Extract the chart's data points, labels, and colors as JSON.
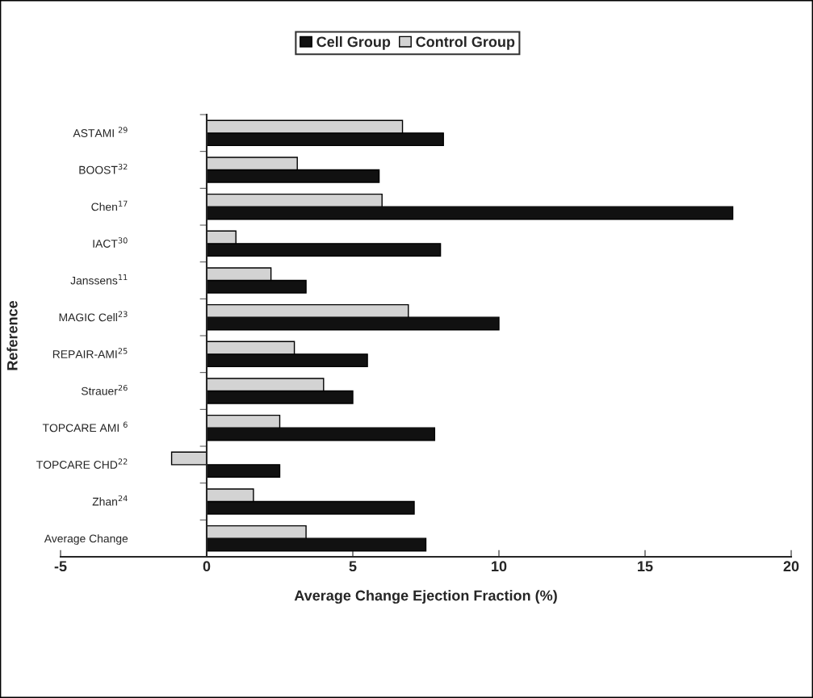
{
  "chart_data": {
    "type": "bar",
    "orientation": "horizontal",
    "xlabel": "Average Change Ejection Fraction (%)",
    "ylabel": "Reference",
    "categories": [
      "ASTAMI $^{29}$",
      "BOOST$^{32}$",
      "Chen$^{17}$",
      "IACT$^{30}$",
      "Janssens$^{11}$",
      "MAGIC Cell$^{23}$",
      "REPAIR-AMI$^{25}$",
      "Strauer$^{26}$",
      "TOPCARE AMI $^{6}$",
      "TOPCARE CHD$^{22}$",
      "Zhan$^{24}$",
      "Average Change"
    ],
    "series": [
      {
        "name": "Cell Group",
        "color": "#111111",
        "values": [
          8.1,
          5.9,
          18.0,
          8.0,
          3.4,
          10.0,
          5.5,
          5.0,
          7.8,
          2.5,
          7.1,
          7.5
        ]
      },
      {
        "name": "Control Group",
        "color": "#d3d3d3",
        "values": [
          6.7,
          3.1,
          6.0,
          1.0,
          2.2,
          6.9,
          3.0,
          4.0,
          2.5,
          -1.2,
          1.6,
          3.4
        ]
      }
    ],
    "xlim": [
      -5,
      20
    ],
    "xticks": [
      -5,
      0,
      5,
      10,
      15,
      20
    ],
    "legend": "top"
  }
}
